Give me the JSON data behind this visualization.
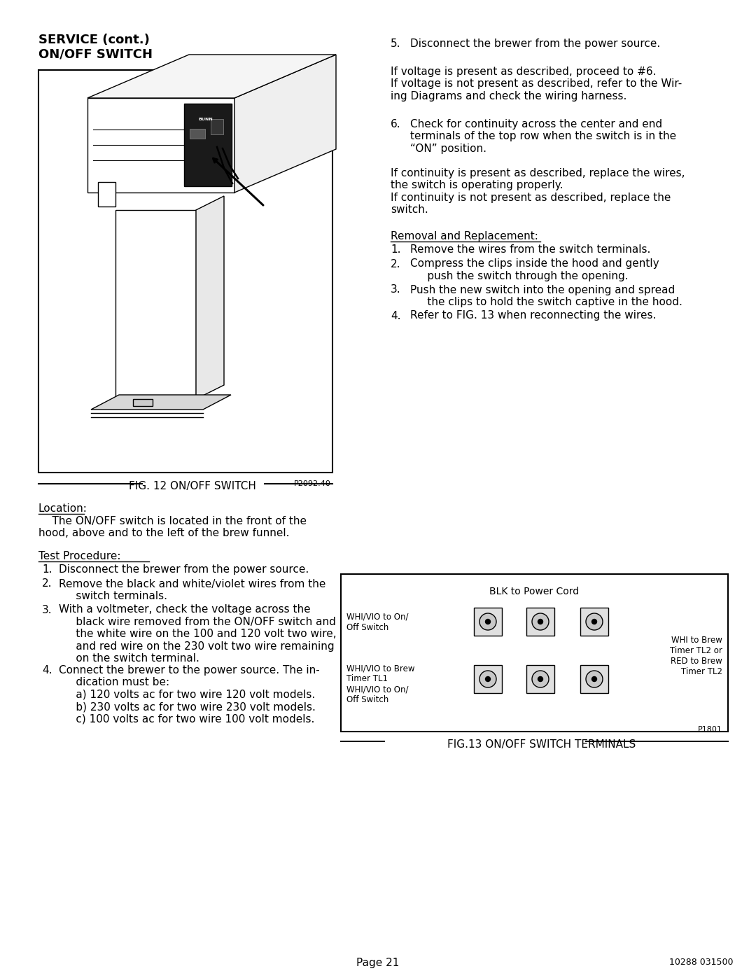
{
  "page_width": 10.8,
  "page_height": 13.97,
  "bg_color": "#ffffff",
  "fig12_caption": "FIG. 12 ON/OFF SWITCH",
  "fig12_partnum": "P2092.40",
  "fig13_caption": "FIG.13 ON/OFF SWITCH TERMINALS",
  "fig13_partnum": "P1801",
  "page_label": "Page 21",
  "page_partnum": "10288 031500",
  "header_line1": "SERVICE (cont.)",
  "header_line2": "ON/OFF SWITCH",
  "location_label": "Location:",
  "location_body": "    The ON/OFF switch is located in the front of the\nhood, above and to the left of the brew funnel.",
  "test_label": "Test Procedure:",
  "test_items": [
    "Disconnect the brewer from the power source.",
    "Remove the black and white/violet wires from the\n     switch terminals.",
    "With a voltmeter, check the voltage across the\n     black wire removed from the ON/OFF switch and\n     the white wire on the 100 and 120 volt two wire,\n     and red wire on the 230 volt two wire remaining\n     on the switch terminal.",
    "Connect the brewer to the power source. The in-\n     dication must be:\n     a) 120 volts ac for two wire 120 volt models.\n     b) 230 volts ac for two wire 230 volt models.\n     c) 100 volts ac for two wire 100 volt models."
  ],
  "right_item5": "Disconnect the brewer from the power source.",
  "right_para1": "If voltage is present as described, proceed to #6.\nIf voltage is not present as described, refer to the Wir-\ning Diagrams and check the wiring harness.",
  "right_item6_label": "Check for continuity across the center and end\nterminals of the top row when the switch is in the\n“ON” position.",
  "right_para2": "If continuity is present as described, replace the wires,\nthe switch is operating properly.\nIf continuity is not present as described, replace the\nswitch.",
  "removal_label": "Removal and Replacement:",
  "removal_items": [
    "Remove the wires from the switch terminals.",
    "Compress the clips inside the hood and gently\n     push the switch through the opening.",
    "Push the new switch into the opening and spread\n     the clips to hold the switch captive in the hood.",
    "Refer to FIG. 13 when reconnecting the wires."
  ],
  "fig13_blk": "BLK to Power Cord",
  "fig13_left1": "WHI/VIO to On/\nOff Switch",
  "fig13_left2": "WHI/VIO to Brew\nTimer TL1",
  "fig13_left3": "WHI/VIO to On/\nOff Switch",
  "fig13_right": "WHI to Brew\nTimer TL2 or\nRED to Brew\nTimer TL2"
}
